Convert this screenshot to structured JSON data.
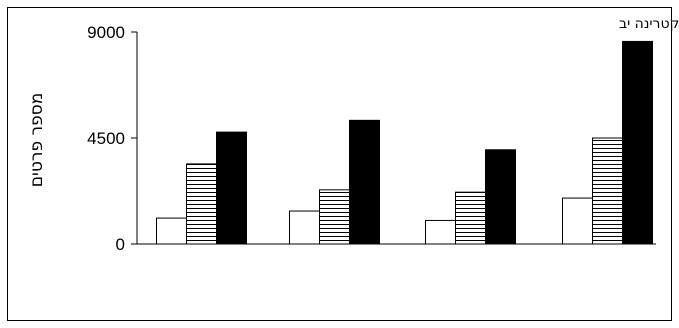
{
  "chart_data": {
    "type": "bar",
    "title": "ח. מתתיהו נקטרינה יב",
    "xlabel": "",
    "ylabel": "מספר פרטים",
    "ylim": [
      0,
      9000
    ],
    "yticks": [
      "0",
      "4500",
      "9000"
    ],
    "categories": [
      "",
      "",
      "",
      ""
    ],
    "grid": false,
    "legend": "none",
    "series": [
      {
        "fill": "white",
        "values": [
          1100,
          1400,
          1000,
          1950
        ]
      },
      {
        "fill": "horizontal-stripes",
        "values": [
          3400,
          2300,
          2200,
          4500
        ]
      },
      {
        "fill": "black",
        "values": [
          4750,
          5250,
          4000,
          8600
        ]
      }
    ]
  },
  "colors": {
    "stroke": "#000000",
    "background": "#ffffff",
    "solid_fill": "#000000"
  }
}
